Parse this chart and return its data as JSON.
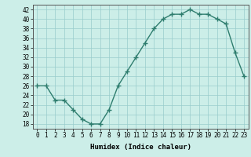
{
  "x": [
    0,
    1,
    2,
    3,
    4,
    5,
    6,
    7,
    8,
    9,
    10,
    11,
    12,
    13,
    14,
    15,
    16,
    17,
    18,
    19,
    20,
    21,
    22,
    23
  ],
  "y": [
    26,
    26,
    23,
    23,
    21,
    19,
    18,
    18,
    21,
    26,
    29,
    32,
    35,
    38,
    40,
    41,
    41,
    42,
    41,
    41,
    40,
    39,
    33,
    28
  ],
  "line_color": "#2e7d6e",
  "marker": "+",
  "marker_size": 4,
  "marker_lw": 1.0,
  "line_width": 1.0,
  "bg_color": "#cceee8",
  "grid_color": "#99cccc",
  "xlabel": "Humidex (Indice chaleur)",
  "xlim": [
    -0.5,
    23.5
  ],
  "ylim": [
    17,
    43
  ],
  "yticks": [
    18,
    20,
    22,
    24,
    26,
    28,
    30,
    32,
    34,
    36,
    38,
    40,
    42
  ],
  "xticks": [
    0,
    1,
    2,
    3,
    4,
    5,
    6,
    7,
    8,
    9,
    10,
    11,
    12,
    13,
    14,
    15,
    16,
    17,
    18,
    19,
    20,
    21,
    22,
    23
  ],
  "tick_fontsize": 5.5,
  "label_fontsize": 6.5
}
